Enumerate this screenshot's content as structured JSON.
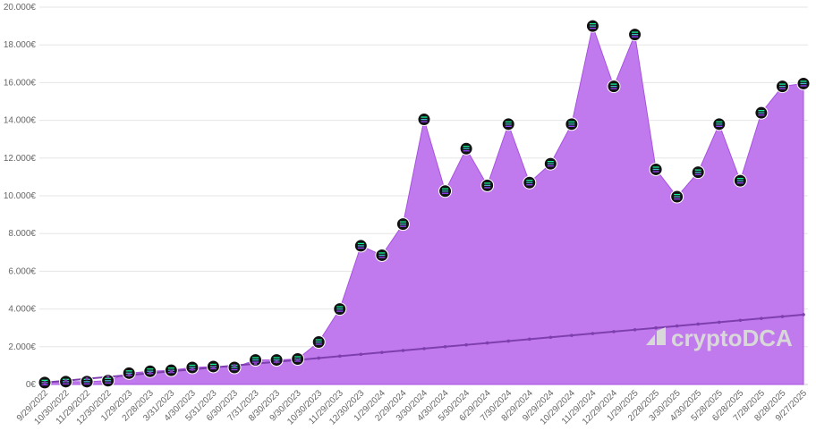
{
  "chart_data": {
    "type": "area",
    "categories": [
      "9/29/2022",
      "10/30/2022",
      "11/29/2022",
      "12/30/2022",
      "1/29/2023",
      "2/28/2023",
      "3/31/2023",
      "4/30/2023",
      "5/31/2023",
      "6/30/2023",
      "7/31/2023",
      "8/30/2023",
      "9/30/2023",
      "10/30/2023",
      "11/29/2023",
      "12/30/2023",
      "1/29/2024",
      "2/29/2024",
      "3/30/2024",
      "4/30/2024",
      "5/30/2024",
      "6/29/2024",
      "7/30/2024",
      "8/29/2024",
      "9/29/2024",
      "10/29/2024",
      "11/29/2024",
      "12/29/2024",
      "1/29/2025",
      "2/28/2025",
      "3/30/2025",
      "4/30/2025",
      "5/28/2025",
      "6/28/2025",
      "7/28/2025",
      "8/28/2025",
      "9/27/2025"
    ],
    "series": [
      {
        "color": "#c17aee",
        "values": [
          100,
          150,
          150,
          200,
          600,
          700,
          750,
          900,
          950,
          900,
          1300,
          1300,
          1350,
          2250,
          4000,
          7350,
          6850,
          8500,
          14050,
          10250,
          12500,
          10550,
          13800,
          10700,
          11700,
          13800,
          19000,
          15800,
          18550,
          11400,
          9950,
          11250,
          13800,
          10800,
          14400,
          15800,
          15950
        ]
      },
      {
        "color": "#7e3fae",
        "values": [
          100,
          200,
          300,
          400,
          500,
          600,
          700,
          800,
          900,
          1000,
          1100,
          1200,
          1300,
          1400,
          1500,
          1600,
          1700,
          1800,
          1900,
          2000,
          2100,
          2200,
          2300,
          2400,
          2500,
          2600,
          2700,
          2800,
          2900,
          3000,
          3100,
          3200,
          3300,
          3400,
          3500,
          3600,
          3700
        ]
      }
    ],
    "ylim": [
      0,
      20000
    ],
    "yticks": [
      {
        "value": 0,
        "label": "0€"
      },
      {
        "value": 2000,
        "label": "2.000€"
      },
      {
        "value": 4000,
        "label": "4.000€"
      },
      {
        "value": 6000,
        "label": "6.000€"
      },
      {
        "value": 8000,
        "label": "8.000€"
      },
      {
        "value": 10000,
        "label": "10.000€"
      },
      {
        "value": 12000,
        "label": "12.000€"
      },
      {
        "value": 14000,
        "label": "14.000€"
      },
      {
        "value": 16000,
        "label": "16.000€"
      },
      {
        "value": 18000,
        "label": "18.000€"
      },
      {
        "value": 20000,
        "label": "20.000€"
      }
    ],
    "grid": true,
    "watermark": "cryptoDCA"
  }
}
